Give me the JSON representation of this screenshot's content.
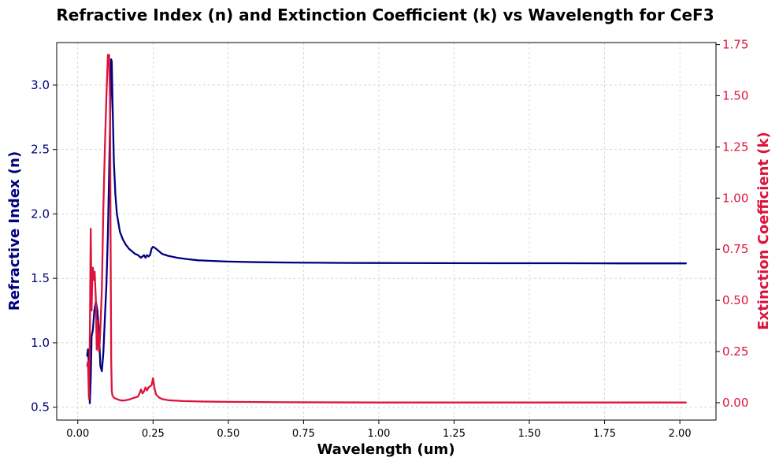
{
  "chart_data": {
    "type": "line",
    "title": "Refractive Index (n) and Extinction Coefficient (k) vs Wavelength for CeF3",
    "xlabel": "Wavelength (um)",
    "ylabel_left": "Refractive Index (n)",
    "ylabel_right": "Extinction Coefficient (k)",
    "xlim": [
      -0.07,
      2.12
    ],
    "ylim_left": [
      0.4,
      3.33
    ],
    "ylim_right": [
      -0.085,
      1.76
    ],
    "xticks": [
      "0.00",
      "0.25",
      "0.50",
      "0.75",
      "1.00",
      "1.25",
      "1.50",
      "1.75",
      "2.00"
    ],
    "xtick_values": [
      0,
      0.25,
      0.5,
      0.75,
      1.0,
      1.25,
      1.5,
      1.75,
      2.0
    ],
    "yticks_left": [
      "0.5",
      "1.0",
      "1.5",
      "2.0",
      "2.5",
      "3.0"
    ],
    "ytick_values_left": [
      0.5,
      1.0,
      1.5,
      2.0,
      2.5,
      3.0
    ],
    "yticks_right": [
      "0.00",
      "0.25",
      "0.50",
      "0.75",
      "1.00",
      "1.25",
      "1.50",
      "1.75"
    ],
    "ytick_values_right": [
      0,
      0.25,
      0.5,
      0.75,
      1.0,
      1.25,
      1.5,
      1.75
    ],
    "grid": true,
    "colors": {
      "n": "#000080",
      "k": "#dc143c"
    },
    "series": [
      {
        "axis": "left",
        "x": [
          0.031,
          0.034,
          0.037,
          0.04,
          0.043,
          0.046,
          0.05,
          0.055,
          0.06,
          0.065,
          0.07,
          0.075,
          0.08,
          0.085,
          0.09,
          0.095,
          0.1,
          0.104,
          0.108,
          0.111,
          0.113,
          0.116,
          0.12,
          0.125,
          0.13,
          0.14,
          0.15,
          0.16,
          0.17,
          0.18,
          0.19,
          0.2,
          0.21,
          0.215,
          0.22,
          0.225,
          0.23,
          0.235,
          0.24,
          0.245,
          0.25,
          0.26,
          0.27,
          0.28,
          0.3,
          0.33,
          0.36,
          0.4,
          0.45,
          0.5,
          0.6,
          0.7,
          0.8,
          0.9,
          1.0,
          1.2,
          1.4,
          1.6,
          1.8,
          2.0,
          2.02
        ],
        "values": [
          0.9,
          0.95,
          0.82,
          0.53,
          0.72,
          1.05,
          1.1,
          1.25,
          1.32,
          1.25,
          1.1,
          0.82,
          0.78,
          0.92,
          1.2,
          1.45,
          1.85,
          2.3,
          2.8,
          3.2,
          3.18,
          2.8,
          2.4,
          2.15,
          2.0,
          1.86,
          1.8,
          1.76,
          1.73,
          1.71,
          1.69,
          1.68,
          1.66,
          1.67,
          1.68,
          1.66,
          1.68,
          1.67,
          1.68,
          1.73,
          1.745,
          1.73,
          1.71,
          1.69,
          1.675,
          1.66,
          1.65,
          1.64,
          1.635,
          1.63,
          1.625,
          1.623,
          1.621,
          1.62,
          1.619,
          1.618,
          1.617,
          1.617,
          1.616,
          1.616,
          1.616
        ]
      },
      {
        "axis": "right",
        "x": [
          0.031,
          0.034,
          0.037,
          0.04,
          0.043,
          0.046,
          0.048,
          0.05,
          0.053,
          0.056,
          0.06,
          0.063,
          0.066,
          0.07,
          0.073,
          0.076,
          0.08,
          0.085,
          0.09,
          0.095,
          0.1,
          0.104,
          0.107,
          0.109,
          0.111,
          0.113,
          0.115,
          0.117,
          0.12,
          0.125,
          0.13,
          0.14,
          0.15,
          0.16,
          0.17,
          0.18,
          0.19,
          0.2,
          0.205,
          0.21,
          0.215,
          0.22,
          0.225,
          0.23,
          0.235,
          0.24,
          0.245,
          0.25,
          0.255,
          0.26,
          0.27,
          0.28,
          0.3,
          0.35,
          0.4,
          0.5,
          0.7,
          1.0,
          1.5,
          2.0,
          2.02
        ],
        "values": [
          0.18,
          0.2,
          0.02,
          0.3,
          0.85,
          0.45,
          0.6,
          0.66,
          0.6,
          0.64,
          0.5,
          0.26,
          0.4,
          0.25,
          0.3,
          0.4,
          0.55,
          0.95,
          1.25,
          1.5,
          1.7,
          1.7,
          1.5,
          0.8,
          0.2,
          0.06,
          0.035,
          0.03,
          0.025,
          0.02,
          0.018,
          0.012,
          0.01,
          0.012,
          0.015,
          0.02,
          0.025,
          0.03,
          0.045,
          0.065,
          0.045,
          0.055,
          0.075,
          0.06,
          0.075,
          0.08,
          0.085,
          0.12,
          0.07,
          0.04,
          0.025,
          0.018,
          0.012,
          0.008,
          0.006,
          0.004,
          0.002,
          0.001,
          0.001,
          0.001,
          0.001
        ]
      }
    ]
  }
}
